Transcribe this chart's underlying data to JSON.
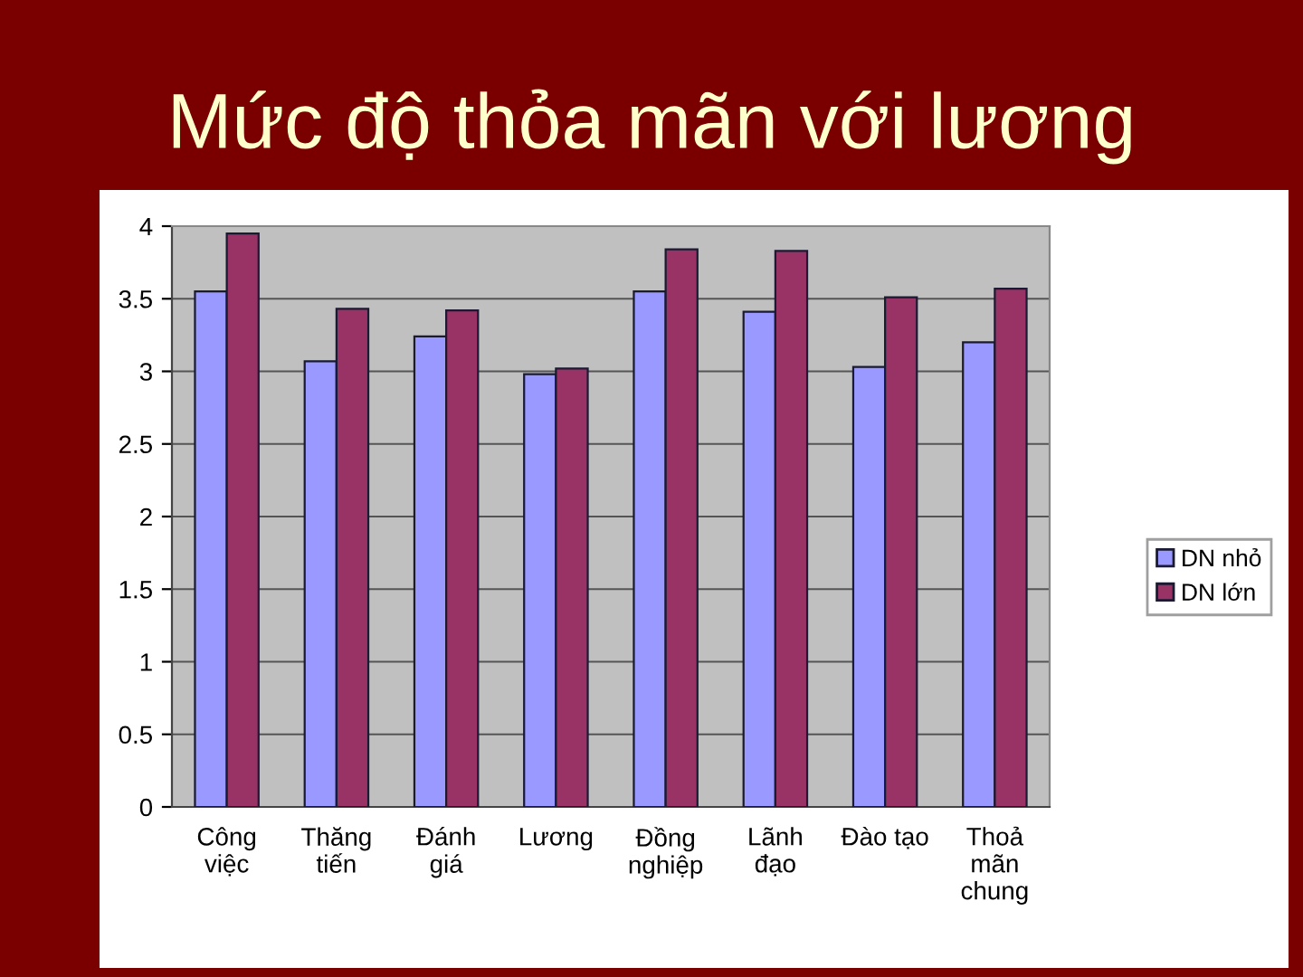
{
  "chart_data": {
    "type": "bar",
    "title": "Mức độ thỏa mãn với lương",
    "categories": [
      "Công\nviệc",
      "Thăng\ntiến",
      "Đánh\ngiá",
      "Lương",
      "Đồng\nnghiệp",
      "Lãnh\nđạo",
      "Đào tạo",
      "Thoả\nmãn\nchung"
    ],
    "series": [
      {
        "name": "DN nhỏ",
        "color": "#9999ff",
        "values": [
          3.55,
          3.07,
          3.24,
          2.98,
          3.55,
          3.41,
          3.03,
          3.2
        ]
      },
      {
        "name": "DN lớn",
        "color": "#993366",
        "values": [
          3.95,
          3.43,
          3.42,
          3.02,
          3.84,
          3.83,
          3.51,
          3.57
        ]
      }
    ],
    "ylim": [
      0,
      4
    ],
    "yticks": [
      0,
      0.5,
      1,
      1.5,
      2,
      2.5,
      3,
      3.5,
      4
    ],
    "grid": "y",
    "legend": "right"
  }
}
